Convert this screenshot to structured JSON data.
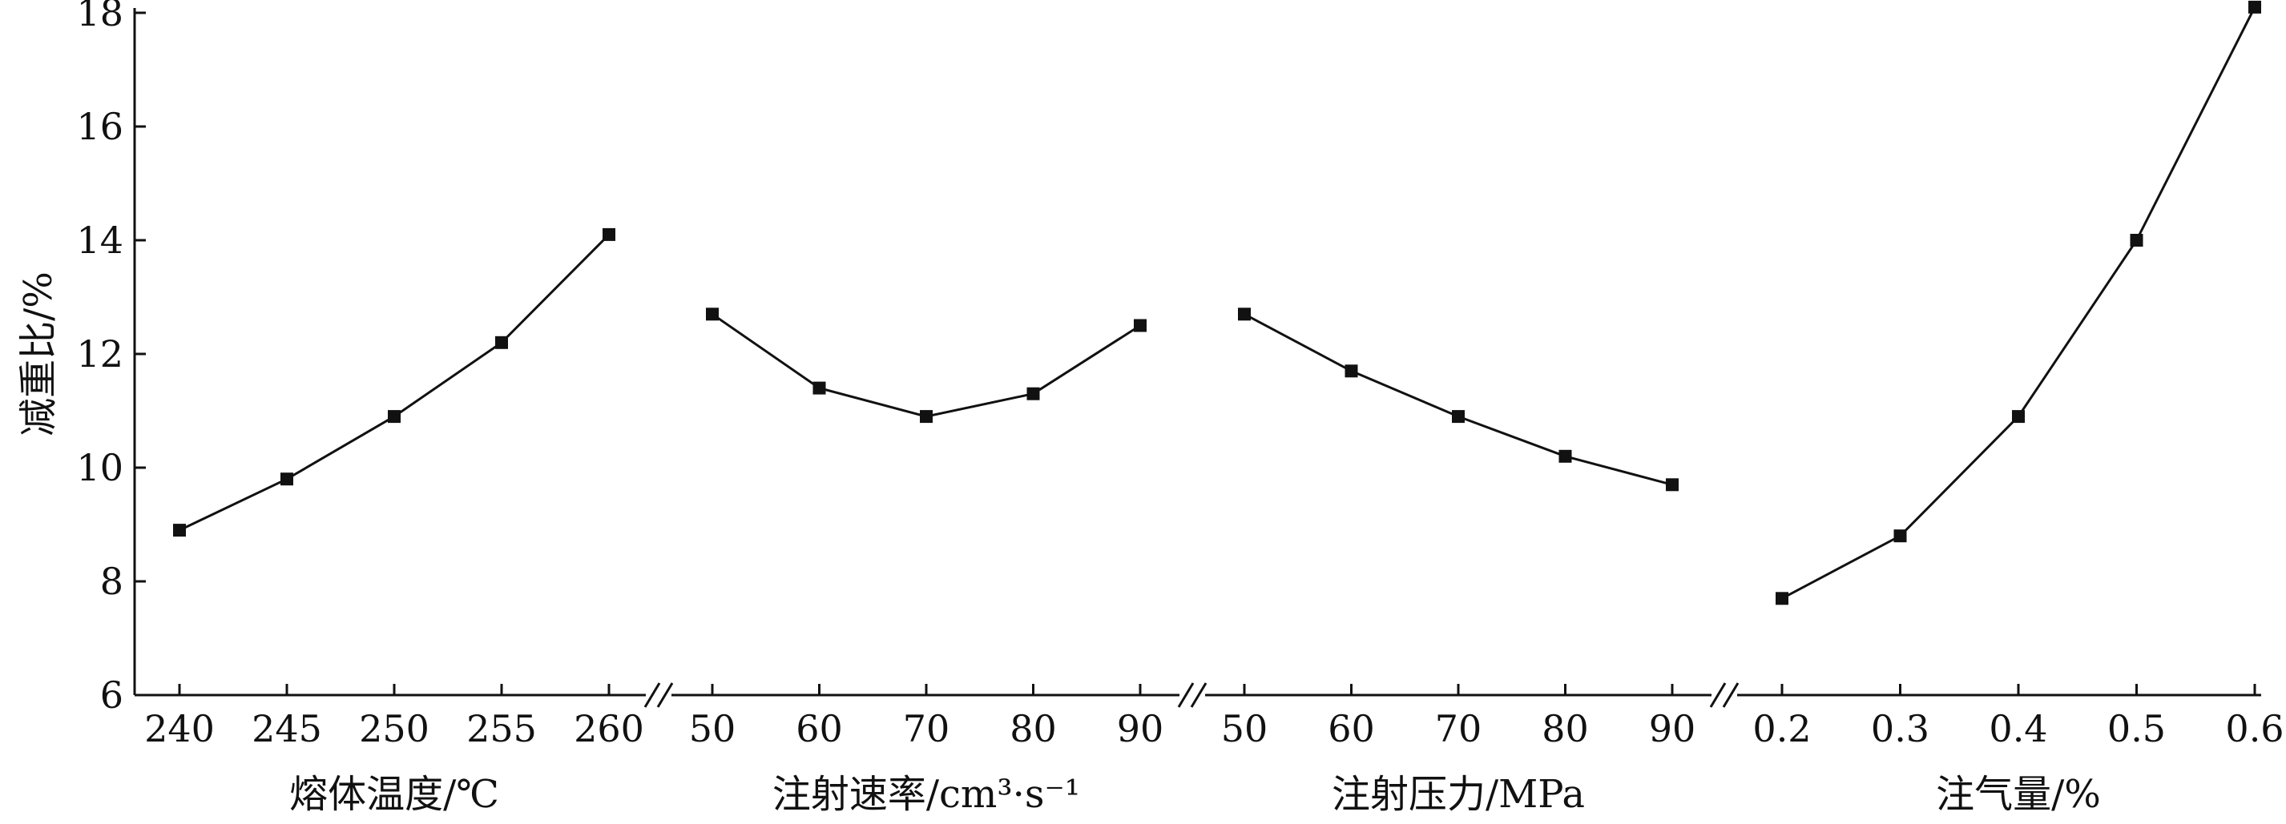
{
  "chart_data": {
    "type": "line",
    "ylabel": "减重比/%",
    "ylim": [
      6,
      18
    ],
    "yticks": [
      6,
      8,
      10,
      12,
      14,
      16,
      18
    ],
    "panels": [
      {
        "xlabel": "熔体温度/℃",
        "x": [
          "240",
          "245",
          "250",
          "255",
          "260"
        ],
        "values": [
          8.9,
          9.8,
          10.9,
          12.2,
          14.1
        ]
      },
      {
        "xlabel": "注射速率/cm³·s⁻¹",
        "x": [
          "50",
          "60",
          "70",
          "80",
          "90"
        ],
        "values": [
          12.7,
          11.4,
          10.9,
          11.3,
          12.5
        ]
      },
      {
        "xlabel": "注射压力/MPa",
        "x": [
          "50",
          "60",
          "70",
          "80",
          "90"
        ],
        "values": [
          12.7,
          11.7,
          10.9,
          10.2,
          9.7
        ]
      },
      {
        "xlabel": "注气量/%",
        "x": [
          "0.2",
          "0.3",
          "0.4",
          "0.5",
          "0.6"
        ],
        "values": [
          7.7,
          8.8,
          10.9,
          14.0,
          18.1
        ]
      }
    ],
    "colors": {
      "line": "#111111",
      "marker": "#111111"
    }
  }
}
